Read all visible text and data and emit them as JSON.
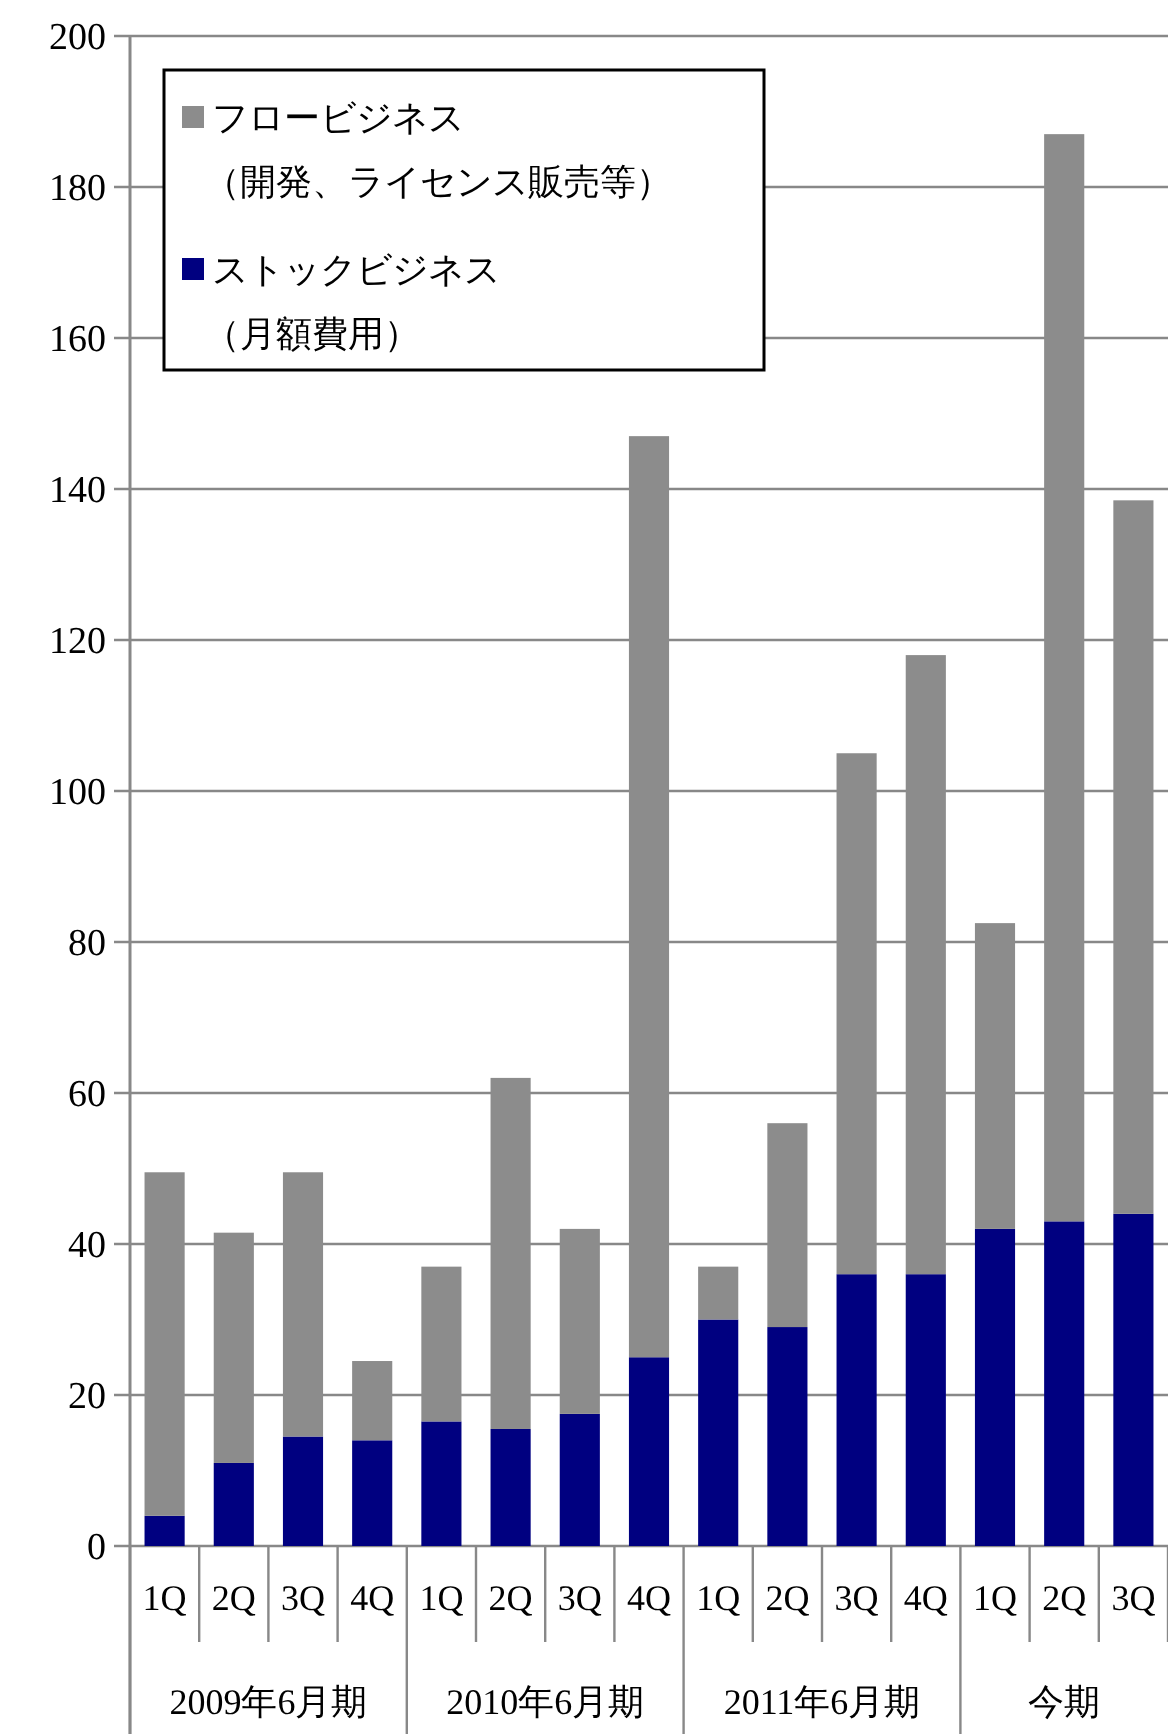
{
  "chart_data": {
    "type": "bar",
    "stacked": true,
    "categories": [
      "1Q",
      "2Q",
      "3Q",
      "4Q",
      "1Q",
      "2Q",
      "3Q",
      "4Q",
      "1Q",
      "2Q",
      "3Q",
      "4Q",
      "1Q",
      "2Q",
      "3Q"
    ],
    "series": [
      {
        "name": "ストックビジネス（月額費用）",
        "color": "#000080",
        "values": [
          4,
          11,
          14.5,
          14,
          16.5,
          15.5,
          17.5,
          25,
          30,
          29,
          36,
          36,
          42,
          43,
          44
        ]
      },
      {
        "name": "フロービジネス（開発、ライセンス販売等）",
        "color": "#8c8c8c",
        "values": [
          45.5,
          30.5,
          35,
          10.5,
          20.5,
          46.5,
          24.5,
          122,
          7,
          27,
          69,
          82,
          40.5,
          144,
          94.5
        ]
      }
    ],
    "annotations": [
      "2009年6月期",
      "2010年6月期",
      "2011年6月期",
      "今期"
    ],
    "ylim": [
      0,
      200
    ],
    "yticks": [
      0,
      20,
      40,
      60,
      80,
      100,
      120,
      140,
      160,
      180,
      200
    ],
    "grid": "y",
    "legend": "top left"
  }
}
